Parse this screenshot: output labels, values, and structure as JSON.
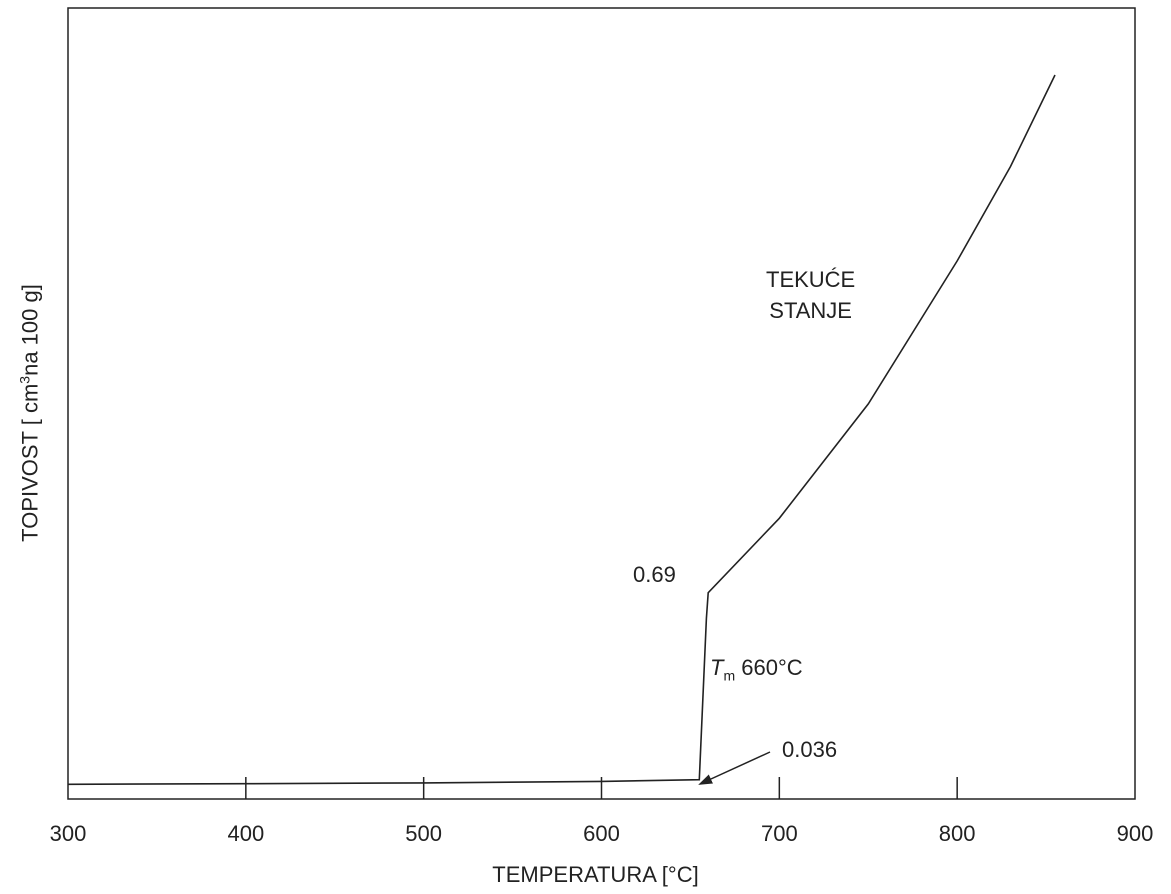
{
  "chart_data": {
    "type": "line",
    "title": "",
    "xlabel": "TEMPERATURA [°C]",
    "ylabel_main": "TOPIVOST [ cm",
    "ylabel_sup": "3",
    "ylabel_rest": "na 100 g]",
    "xlim": [
      300,
      900
    ],
    "xticks": [
      "300",
      "400",
      "500",
      "600",
      "700",
      "800",
      "900"
    ],
    "y_relative_scale": true,
    "series": [
      {
        "x": [
          300,
          400,
          500,
          600,
          655,
          659,
          660,
          700,
          750,
          800,
          830,
          855
        ],
        "y": [
          0.02,
          0.022,
          0.025,
          0.03,
          0.036,
          0.6,
          0.69,
          0.95,
          1.35,
          1.85,
          2.18,
          2.5
        ]
      }
    ],
    "annotations": {
      "liquid_label_line1": "TEKUĆE",
      "liquid_label_line2": "STANJE",
      "value_high": "0.69",
      "value_low": "0.036",
      "tm_symbol": "T",
      "tm_sub": "m",
      "tm_value": "660°C"
    },
    "grid": false
  }
}
